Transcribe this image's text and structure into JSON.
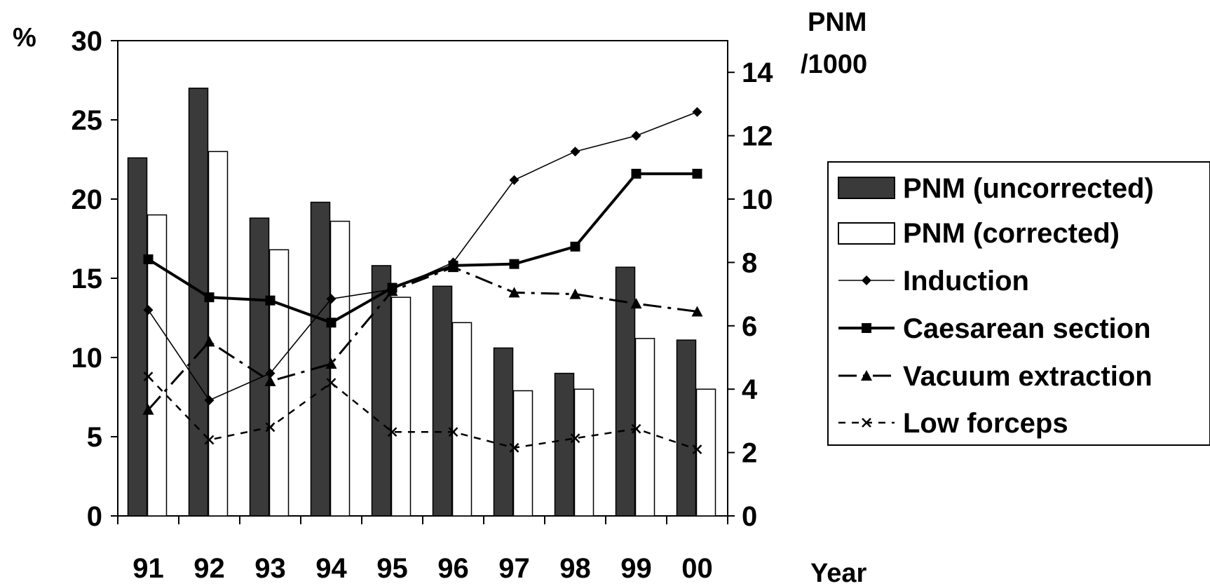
{
  "chart_data": {
    "type": "bar",
    "categories": [
      "91",
      "92",
      "93",
      "94",
      "95",
      "96",
      "97",
      "98",
      "99",
      "00"
    ],
    "xlabel": "Year",
    "y_left": {
      "label": "%",
      "ticks": [
        "0",
        "5",
        "10",
        "15",
        "20",
        "25",
        "30"
      ],
      "range": [
        0,
        30
      ]
    },
    "y_right": {
      "label_line1": "PNM",
      "label_line2": "/1000",
      "ticks": [
        "0",
        "2",
        "4",
        "6",
        "8",
        "10",
        "12",
        "14"
      ],
      "range": [
        0,
        15
      ]
    },
    "bar_series": [
      {
        "name": "PNM (uncorrected)",
        "axis": "right",
        "color": "#3a3a3a",
        "values": [
          11.3,
          13.5,
          9.4,
          9.9,
          7.9,
          7.25,
          5.3,
          4.5,
          7.85,
          5.55
        ]
      },
      {
        "name": "PNM (corrected)",
        "axis": "right",
        "color": "#ffffff",
        "values": [
          9.5,
          11.5,
          8.4,
          9.3,
          6.9,
          6.1,
          3.95,
          4.0,
          5.6,
          4.0
        ]
      }
    ],
    "line_series": [
      {
        "name": "Induction",
        "axis": "left",
        "marker": "diamond",
        "style": "thin",
        "values": [
          13.0,
          7.3,
          9.0,
          13.7,
          14.3,
          16.0,
          21.2,
          23.0,
          24.0,
          25.5
        ]
      },
      {
        "name": "Caesarean section",
        "axis": "left",
        "marker": "square",
        "style": "thick",
        "values": [
          16.2,
          13.8,
          13.6,
          12.2,
          14.4,
          15.8,
          15.9,
          17.0,
          21.6,
          21.6
        ]
      },
      {
        "name": "Vacuum extraction",
        "axis": "left",
        "marker": "triangle",
        "style": "dashdot",
        "values": [
          6.7,
          11.0,
          8.5,
          9.6,
          14.2,
          15.7,
          14.1,
          14.0,
          13.4,
          12.9
        ]
      },
      {
        "name": "Low forceps",
        "axis": "left",
        "marker": "x",
        "style": "dashed",
        "values": [
          8.8,
          4.8,
          5.6,
          8.4,
          5.3,
          5.3,
          4.3,
          4.9,
          5.5,
          4.2
        ]
      }
    ],
    "legend_position": "right",
    "grid": false
  }
}
